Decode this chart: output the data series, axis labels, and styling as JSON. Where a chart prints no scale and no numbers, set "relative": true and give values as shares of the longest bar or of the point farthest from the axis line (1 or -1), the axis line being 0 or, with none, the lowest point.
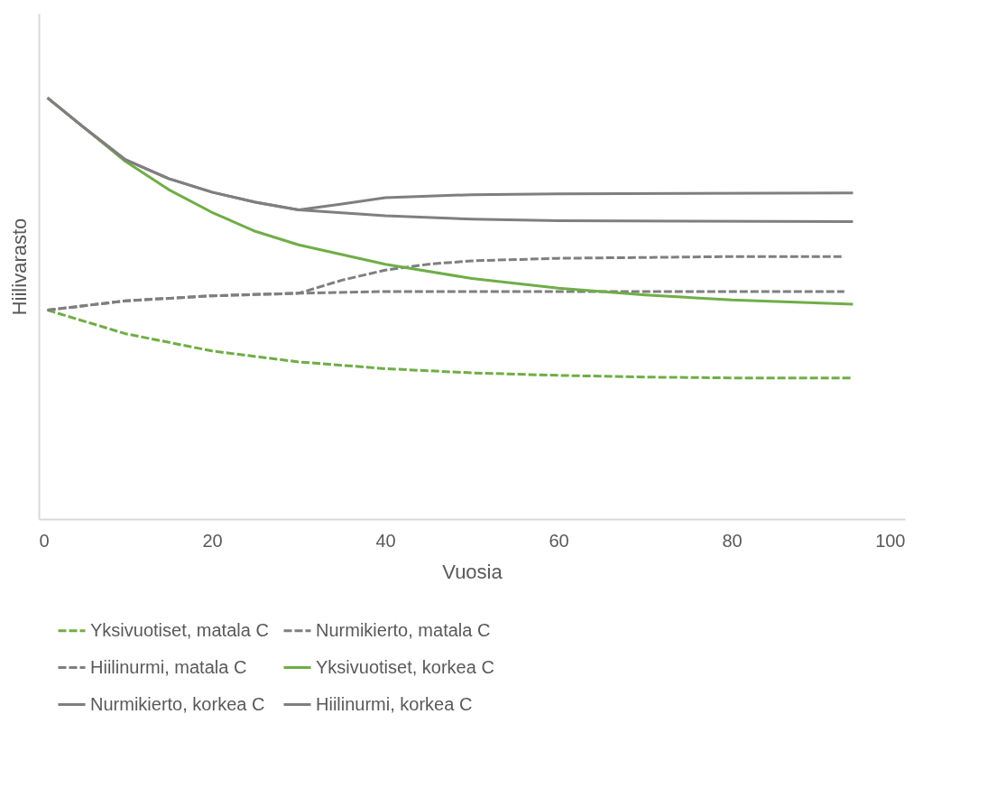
{
  "chart_data": {
    "type": "line",
    "relative": true,
    "xlabel": "Vuosia",
    "ylabel": "Hiilivarasto",
    "xlim": [
      0,
      100
    ],
    "xticks": [
      0,
      20,
      40,
      60,
      80,
      100
    ],
    "grid": false,
    "legend": "bottom",
    "marker": "none",
    "series": [
      {
        "name": "Yksivuotiset, matala C",
        "color": "#70ad47",
        "line_style": "dashed",
        "x": [
          1,
          10,
          20,
          30,
          40,
          50,
          60,
          70,
          80,
          94
        ],
        "values": [
          0.496,
          0.44,
          0.399,
          0.373,
          0.357,
          0.347,
          0.341,
          0.337,
          0.335,
          0.335
        ]
      },
      {
        "name": "Nurmikierto, matala C",
        "color": "#7f7f7f",
        "line_style": "dashed",
        "x": [
          1,
          10,
          20,
          30,
          40,
          50,
          60,
          70,
          80,
          93
        ],
        "values": [
          0.496,
          0.518,
          0.53,
          0.536,
          0.54,
          0.54,
          0.54,
          0.54,
          0.54,
          0.54
        ]
      },
      {
        "name": "Hiilinurmi, matala C",
        "color": "#7f7f7f",
        "line_style": "dashed",
        "x": [
          1,
          10,
          20,
          30,
          35,
          40,
          45,
          50,
          60,
          70,
          80,
          93
        ],
        "values": [
          0.496,
          0.518,
          0.53,
          0.536,
          0.567,
          0.591,
          0.605,
          0.613,
          0.619,
          0.621,
          0.623,
          0.623
        ]
      },
      {
        "name": "Yksivuotiset, korkea C",
        "color": "#70ad47",
        "line_style": "solid",
        "x": [
          1,
          5,
          10,
          15,
          20,
          25,
          30,
          40,
          50,
          60,
          70,
          80,
          94
        ],
        "values": [
          1,
          0.933,
          0.849,
          0.782,
          0.728,
          0.683,
          0.651,
          0.605,
          0.571,
          0.548,
          0.532,
          0.52,
          0.51
        ]
      },
      {
        "name": "Nurmikierto, korkea C",
        "color": "#7f7f7f",
        "line_style": "solid",
        "x": [
          1,
          5,
          10,
          15,
          20,
          25,
          30,
          40,
          50,
          60,
          94
        ],
        "values": [
          1,
          0.933,
          0.853,
          0.808,
          0.776,
          0.752,
          0.734,
          0.72,
          0.712,
          0.708,
          0.706
        ]
      },
      {
        "name": "Hiilinurmi, korkea C",
        "color": "#7f7f7f",
        "line_style": "solid",
        "x": [
          1,
          5,
          10,
          15,
          20,
          25,
          30,
          35,
          40,
          50,
          60,
          94
        ],
        "values": [
          1,
          0.933,
          0.853,
          0.808,
          0.776,
          0.752,
          0.734,
          0.748,
          0.763,
          0.77,
          0.772,
          0.774
        ]
      }
    ]
  }
}
